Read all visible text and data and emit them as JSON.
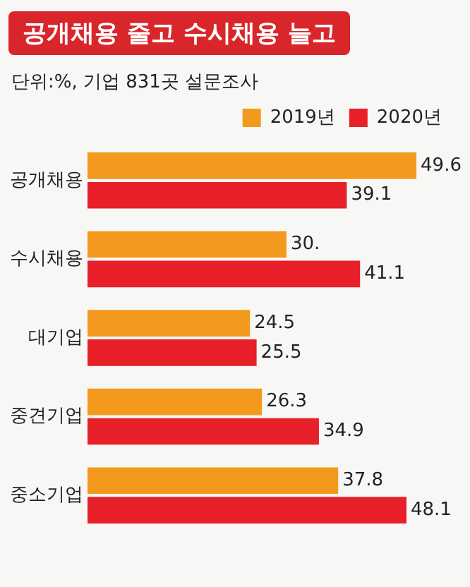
{
  "chart_data": {
    "type": "bar",
    "orientation": "horizontal",
    "title": "공개채용 줄고 수시채용 늘고",
    "subtitle": "단위:%, 기업 831곳 설문조사",
    "categories": [
      "공개채용",
      "수시채용",
      "대기업",
      "중견기업",
      "중소기업"
    ],
    "series": [
      {
        "name": "2019년",
        "color": "#f39a1e",
        "values": [
          49.6,
          30,
          24.5,
          26.3,
          37.8
        ],
        "value_labels": [
          "49.6",
          "30.",
          "24.5",
          "26.3",
          "37.8"
        ]
      },
      {
        "name": "2020년",
        "color": "#e8202a",
        "values": [
          39.1,
          41.1,
          25.5,
          34.9,
          48.1
        ],
        "value_labels": [
          "39.1",
          "41.1",
          "25.5",
          "34.9",
          "48.1"
        ]
      }
    ],
    "legend": "top right",
    "grid": false
  }
}
